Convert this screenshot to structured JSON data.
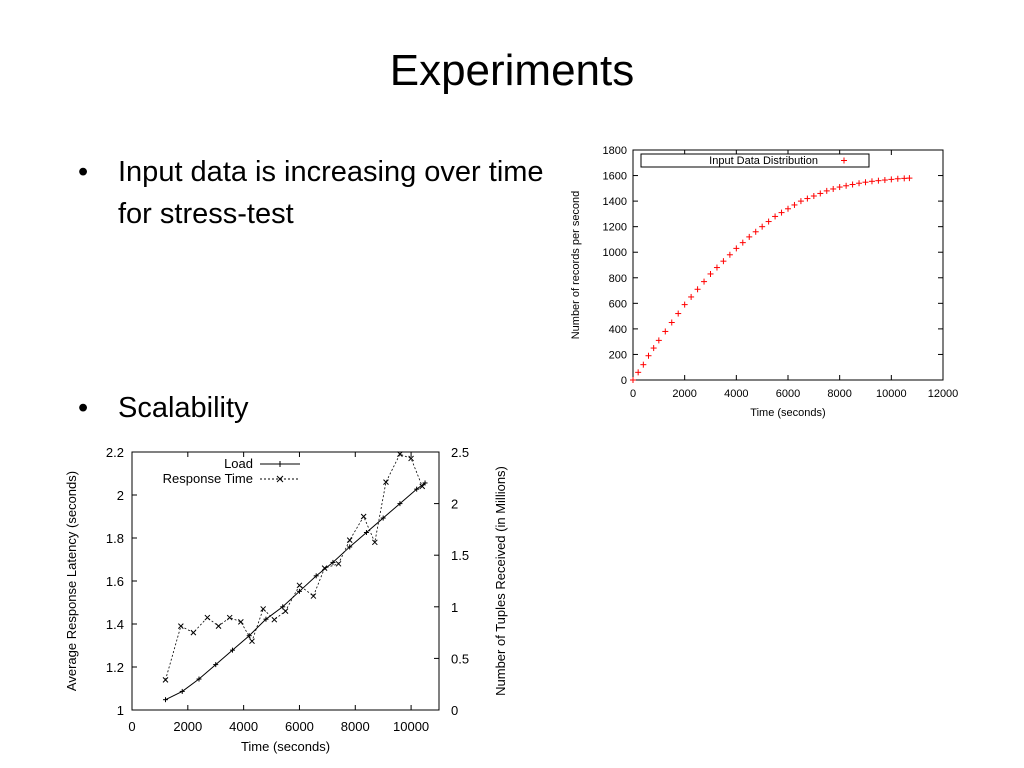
{
  "slide": {
    "title": "Experiments",
    "bullets": [
      {
        "marker": "•",
        "text": "Input data is increasing over time for stress-test"
      },
      {
        "marker": "•",
        "text": "Scalability"
      }
    ]
  },
  "colors": {
    "input_series": "#ff0000",
    "axis": "#000000"
  },
  "chart_data": [
    {
      "type": "scatter",
      "title": "",
      "xlabel": "Time (seconds)",
      "ylabel": "Number of records per second",
      "xlim": [
        0,
        12000
      ],
      "ylim": [
        0,
        1800
      ],
      "xticks": [
        0,
        2000,
        4000,
        6000,
        8000,
        10000,
        12000
      ],
      "yticks": [
        0,
        200,
        400,
        600,
        800,
        1000,
        1200,
        1400,
        1600,
        1800
      ],
      "legend_position": "top",
      "grid": false,
      "series": [
        {
          "name": "Input Data Distribution",
          "marker": "+",
          "color": "#ff0000",
          "x": [
            0,
            200,
            400,
            600,
            800,
            1000,
            1250,
            1500,
            1750,
            2000,
            2250,
            2500,
            2750,
            3000,
            3250,
            3500,
            3750,
            4000,
            4250,
            4500,
            4750,
            5000,
            5250,
            5500,
            5750,
            6000,
            6250,
            6500,
            6750,
            7000,
            7250,
            7500,
            7750,
            8000,
            8250,
            8500,
            8750,
            9000,
            9250,
            9500,
            9750,
            10000,
            10250,
            10500,
            10700
          ],
          "y": [
            0,
            60,
            120,
            190,
            250,
            310,
            380,
            450,
            520,
            590,
            650,
            710,
            770,
            830,
            880,
            930,
            980,
            1030,
            1075,
            1120,
            1160,
            1200,
            1240,
            1280,
            1310,
            1340,
            1370,
            1400,
            1420,
            1440,
            1460,
            1480,
            1495,
            1510,
            1520,
            1530,
            1540,
            1548,
            1555,
            1560,
            1565,
            1570,
            1575,
            1578,
            1580
          ]
        }
      ]
    },
    {
      "type": "line",
      "title": "",
      "xlabel": "Time (seconds)",
      "ylabel": "Average Response Latency (seconds)",
      "y2label": "Number of Tuples Received (in Millions)",
      "xlim": [
        0,
        11000
      ],
      "ylim": [
        1,
        2.2
      ],
      "y2lim": [
        0,
        2.5
      ],
      "xticks": [
        0,
        2000,
        4000,
        6000,
        8000,
        10000
      ],
      "yticks": [
        1,
        1.2,
        1.4,
        1.6,
        1.8,
        2,
        2.2
      ],
      "y2ticks": [
        0,
        0.5,
        1,
        1.5,
        2,
        2.5
      ],
      "legend_position": "top-left",
      "grid": false,
      "series": [
        {
          "name": "Load",
          "axis": "y2",
          "style": "solid",
          "marker": "+",
          "x": [
            1200,
            1800,
            2400,
            3000,
            3600,
            4200,
            4800,
            5400,
            6000,
            6600,
            7200,
            7800,
            8400,
            9000,
            9600,
            10200,
            10500
          ],
          "y": [
            0.1,
            0.18,
            0.3,
            0.44,
            0.58,
            0.72,
            0.88,
            1.0,
            1.15,
            1.3,
            1.43,
            1.58,
            1.72,
            1.86,
            2.0,
            2.14,
            2.2
          ]
        },
        {
          "name": "Response Time",
          "axis": "y",
          "style": "dashed",
          "marker": "x",
          "x": [
            1200,
            1750,
            2200,
            2700,
            3100,
            3500,
            3900,
            4300,
            4700,
            5100,
            5500,
            6000,
            6500,
            6900,
            7400,
            7800,
            8300,
            8700,
            9100,
            9600,
            10000,
            10400
          ],
          "y": [
            1.14,
            1.39,
            1.36,
            1.43,
            1.39,
            1.43,
            1.41,
            1.32,
            1.47,
            1.42,
            1.46,
            1.58,
            1.53,
            1.66,
            1.68,
            1.79,
            1.9,
            1.78,
            2.06,
            2.19,
            2.17,
            2.04
          ]
        }
      ]
    }
  ]
}
